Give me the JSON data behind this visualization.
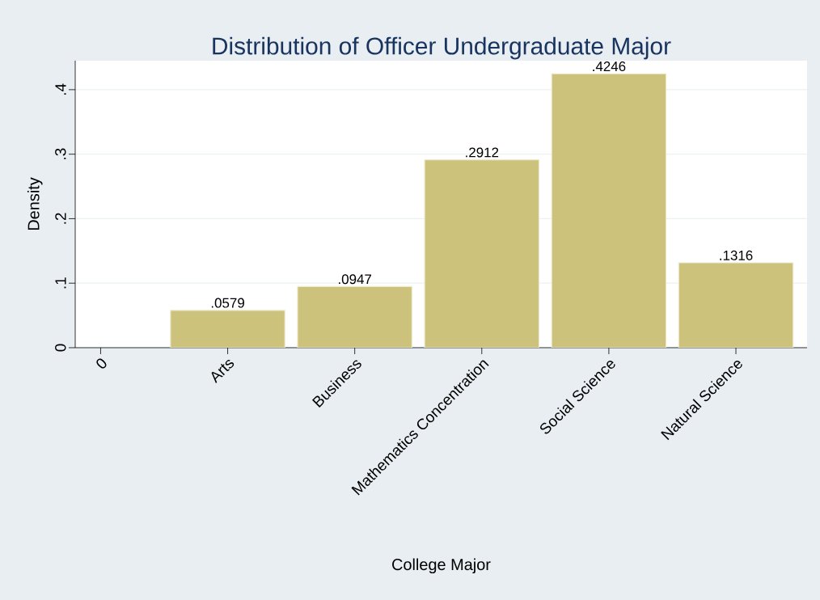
{
  "chart_data": {
    "type": "bar",
    "title": "Distribution of Officer Undergraduate Major",
    "xlabel": "College Major",
    "ylabel": "Density",
    "categories": [
      "0",
      "Arts",
      "Business",
      "Mathematics Concentration",
      "Social Science",
      "Natural Science"
    ],
    "values": [
      null,
      0.0579,
      0.0947,
      0.2912,
      0.4246,
      0.1316
    ],
    "value_labels": [
      null,
      ".0579",
      ".0947",
      ".2912",
      ".4246",
      ".1316"
    ],
    "color": "#ccc27c",
    "ylim": [
      0,
      0.445
    ],
    "yticks": [
      0,
      {
        "value": 0.1,
        "label": ".1"
      },
      {
        "value": 0.2,
        "label": ".2"
      },
      {
        "value": 0.3,
        "label": ".3"
      },
      {
        "value": 0.4,
        "label": ".4"
      }
    ],
    "grid": "y"
  }
}
